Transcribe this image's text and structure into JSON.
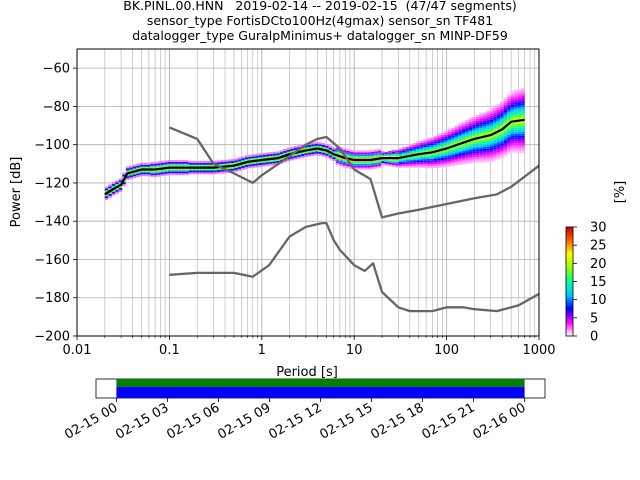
{
  "title_lines": [
    "BK.PINL.00.HNN   2019-02-14 -- 2019-02-15  (47/47 segments)",
    "sensor_type FortisDCto100Hz(4gmax) sensor_sn TF481",
    "datalogger_type GuralpMinimus+ datalogger_sn MINP-DF59"
  ],
  "chart_data": [
    {
      "type": "heatmap",
      "xlabel": "Period [s]",
      "ylabel": "Power [dB]",
      "x_scale": "log",
      "xlim": [
        0.01,
        1000
      ],
      "ylim": [
        -200,
        -50
      ],
      "x_ticks": [
        0.01,
        0.1,
        1,
        10,
        100,
        1000
      ],
      "x_tick_labels": [
        "0.01",
        "0.1",
        "1",
        "10",
        "100",
        "1000"
      ],
      "y_ticks": [
        -200,
        -180,
        -160,
        -140,
        -120,
        -100,
        -80,
        -60
      ],
      "y_tick_labels": [
        "−200",
        "−180",
        "−160",
        "−140",
        "−120",
        "−100",
        "−80",
        "−60"
      ],
      "grid": true,
      "colorbar": {
        "label": "[%]",
        "range": [
          0,
          30
        ],
        "ticks": [
          0,
          5,
          10,
          15,
          20,
          25,
          30
        ],
        "tick_labels": [
          "0",
          "5",
          "10",
          "15",
          "20",
          "25",
          "30"
        ],
        "colors": [
          "#ffffff",
          "#ff00ff",
          "#0000ff",
          "#00c8ff",
          "#00ff96",
          "#96ff00",
          "#ffff00",
          "#ff6400",
          "#c80000"
        ]
      },
      "series": [
        {
          "color": "#000000",
          "x": [
            0.02,
            0.025,
            0.03,
            0.035,
            0.05,
            0.07,
            0.1,
            0.15,
            0.2,
            0.3,
            0.5,
            0.7,
            1,
            1.5,
            2,
            3,
            4,
            5,
            6,
            8,
            10,
            15,
            20,
            30,
            50,
            70,
            100,
            150,
            200,
            300,
            400,
            500,
            700
          ],
          "y": [
            -126,
            -123,
            -121,
            -115,
            -113,
            -113,
            -112,
            -112,
            -112,
            -112,
            -111,
            -109,
            -108,
            -107,
            -105,
            -103,
            -102,
            -103,
            -105,
            -107,
            -108,
            -108,
            -107,
            -107,
            -105,
            -104,
            -102,
            -99,
            -97,
            -95,
            -92,
            -88,
            -87
          ]
        },
        {
          "color": "#666666",
          "x": [
            0.1,
            0.2,
            0.3,
            0.5,
            0.8,
            1,
            2,
            3,
            4,
            5,
            7,
            10,
            15,
            20,
            30,
            50,
            100,
            200,
            350,
            500,
            1000
          ],
          "y": [
            -91,
            -97,
            -110,
            -115,
            -120,
            -116,
            -106,
            -100,
            -97,
            -96,
            -102,
            -113,
            -118,
            -138,
            -136,
            -134,
            -131,
            -128,
            -126,
            -122,
            -111
          ]
        },
        {
          "color": "#666666",
          "x": [
            0.1,
            0.2,
            0.3,
            0.5,
            0.8,
            1.2,
            2,
            3,
            4.5,
            5,
            6,
            7,
            10,
            13,
            16,
            20,
            30,
            40,
            70,
            100,
            150,
            200,
            350,
            600,
            1000
          ],
          "y": [
            -168,
            -167,
            -167,
            -167,
            -169,
            -163,
            -148,
            -143,
            -141,
            -141,
            -150,
            -155,
            -163,
            -166,
            -162,
            -177,
            -185,
            -187,
            -187,
            -185,
            -185,
            -186,
            -187,
            -184,
            -178
          ]
        }
      ]
    },
    {
      "type": "timeline",
      "x_ticks": [
        "02-15 00",
        "02-15 03",
        "02-15 06",
        "02-15 09",
        "02-15 12",
        "02-15 15",
        "02-15 18",
        "02-15 21",
        "02-16 00"
      ],
      "x_tick_hours": [
        0,
        3,
        6,
        9,
        12,
        15,
        18,
        21,
        24
      ],
      "xlim_hours": [
        -1.2,
        25.2
      ],
      "coverage": {
        "start_hour": 0,
        "end_hour": 24
      },
      "colors": {
        "top": "#008000",
        "bottom": "#0000ff"
      }
    }
  ]
}
